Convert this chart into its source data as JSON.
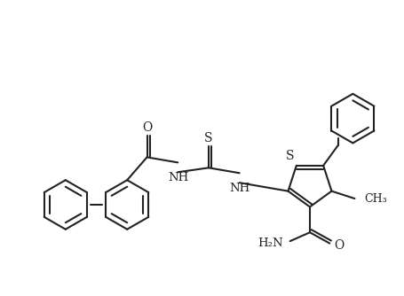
{
  "bg_color": "#ffffff",
  "line_color": "#222222",
  "lw": 1.5,
  "figsize": [
    4.56,
    3.34
  ],
  "dpi": 100,
  "xlim": [
    0,
    9.12
  ],
  "ylim": [
    0,
    6.68
  ]
}
